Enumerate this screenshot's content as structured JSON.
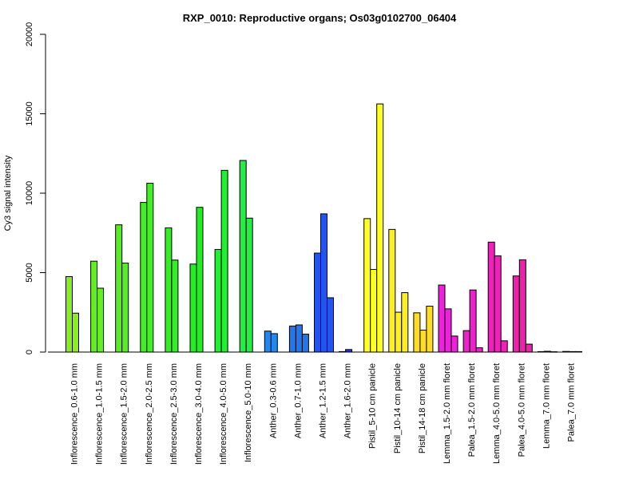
{
  "chart_data": {
    "type": "bar",
    "title": "RXP_0010: Reproductive organs; Os03g0102700_06404",
    "xlabel": "",
    "ylabel": "Cy3 signal intensity",
    "ylim": [
      0,
      20000
    ],
    "yticks": [
      0,
      5000,
      10000,
      15000,
      20000
    ],
    "grid": false,
    "legend": "none",
    "groups": [
      {
        "label": "Inflorescence_0.6-1.0 mm",
        "color": "#88ee22",
        "values": [
          4750,
          2450
        ]
      },
      {
        "label": "Inflorescence_1.0-1.5 mm",
        "color": "#66ee22",
        "values": [
          5720,
          4020
        ]
      },
      {
        "label": "Inflorescence_1.5-2.0 mm",
        "color": "#55ee22",
        "values": [
          8010,
          5600
        ]
      },
      {
        "label": "Inflorescence_2.0-2.5 mm",
        "color": "#44ee22",
        "values": [
          9420,
          10630
        ]
      },
      {
        "label": "Inflorescence_2.5-3.0 mm",
        "color": "#33ee22",
        "values": [
          7820,
          5790
        ]
      },
      {
        "label": "Inflorescence_3.0-4.0 mm",
        "color": "#22ee22",
        "values": [
          5540,
          9110
        ]
      },
      {
        "label": "Inflorescence_4.0-5.0 mm",
        "color": "#22ee33",
        "values": [
          6460,
          11440
        ]
      },
      {
        "label": "Inflorescence_5.0-10 mm",
        "color": "#22ee44",
        "values": [
          12060,
          8430
        ]
      },
      {
        "label": "Anther_0.3-0.6 mm",
        "color": "#2288ee",
        "values": [
          1320,
          1160
        ]
      },
      {
        "label": "Anther_0.7-1.0 mm",
        "color": "#2277ee",
        "values": [
          1640,
          1710,
          1130
        ]
      },
      {
        "label": "Anther_1.2-1.5 mm",
        "color": "#2255ee",
        "values": [
          6230,
          8700,
          3420
        ]
      },
      {
        "label": "Anther_1.6-2.0 mm",
        "color": "#2233ee",
        "values": [
          30,
          160
        ]
      },
      {
        "label": "Pistil_5-10 cm panicle",
        "color": "#ffff22",
        "values": [
          8400,
          5200,
          15620
        ]
      },
      {
        "label": "Pistil_10-14 cm panicle",
        "color": "#ffee22",
        "values": [
          7720,
          2510,
          3740
        ]
      },
      {
        "label": "Pistil_14-18 cm panicle",
        "color": "#ffdd22",
        "values": [
          2470,
          1380,
          2890
        ]
      },
      {
        "label": "Lemma_1.5-2.0 mm floret",
        "color": "#ee22dd",
        "values": [
          4220,
          2720,
          1010
        ]
      },
      {
        "label": "Palea_1.5-2.0 mm floret",
        "color": "#ee22cc",
        "values": [
          1350,
          3910,
          270
        ]
      },
      {
        "label": "Lemma_4.0-5.0 mm floret",
        "color": "#ee22bb",
        "values": [
          6920,
          6060,
          710
        ]
      },
      {
        "label": "Palea_4.0-5.0 mm floret",
        "color": "#ee22aa",
        "values": [
          4790,
          5810,
          500
        ]
      },
      {
        "label": "Lemma_7.0 mm floret",
        "color": "#ee2299",
        "values": [
          30,
          50,
          20
        ]
      },
      {
        "label": "Palea_7.0 mm floret",
        "color": "#ee2288",
        "values": [
          40,
          30,
          30
        ]
      }
    ]
  }
}
